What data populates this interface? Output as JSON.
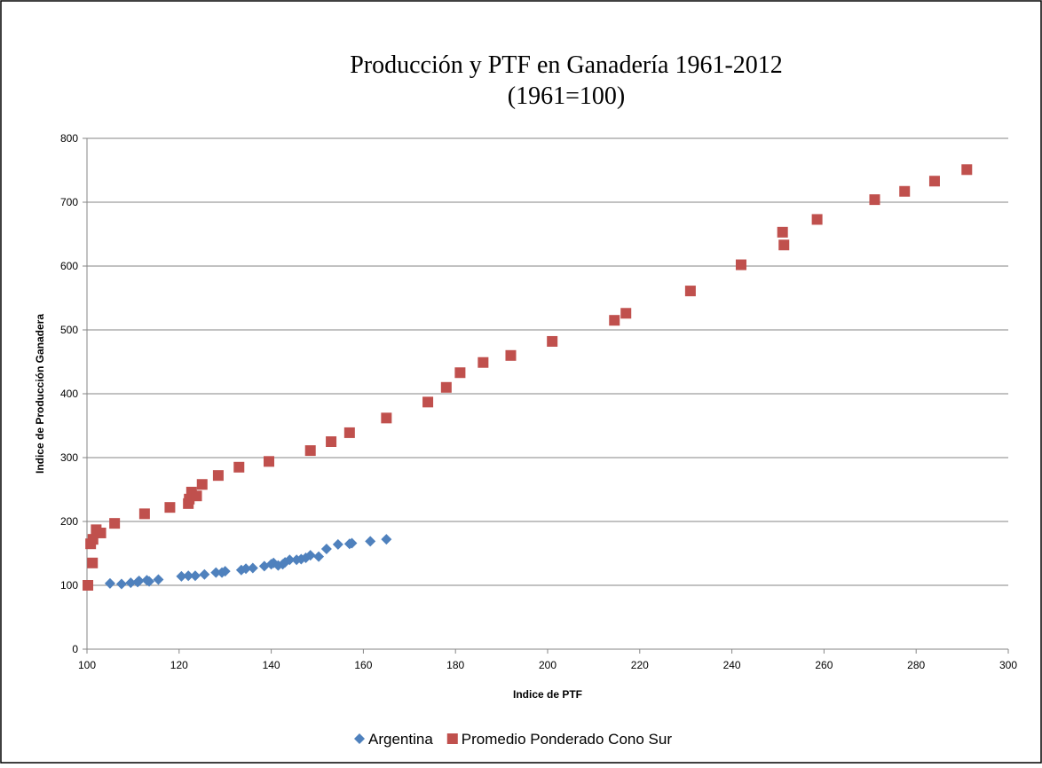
{
  "chart_data": {
    "type": "scatter",
    "title": "Producción y PTF en Ganadería 1961-2012",
    "subtitle": "(1961=100)",
    "x_label": "Indice de PTF",
    "y_label": "Indice de Producción Ganadera",
    "xlim": [
      100,
      300
    ],
    "xticks": [
      100,
      120,
      140,
      160,
      180,
      200,
      220,
      240,
      260,
      280,
      300
    ],
    "ylim": [
      0,
      800
    ],
    "yticks": [
      0,
      100,
      200,
      300,
      400,
      500,
      600,
      700,
      800
    ],
    "grid": true,
    "legend": "bottom",
    "series": [
      {
        "name": "Argentina",
        "color": "#4f81bd",
        "marker": "diamond",
        "x": [
          105,
          107.5,
          109.5,
          111,
          111.3,
          113,
          113.5,
          115.5,
          120.5,
          122,
          123.5,
          125.5,
          128,
          129.3,
          130,
          133.5,
          134.5,
          136,
          138.5,
          140,
          140.5,
          141.5,
          142.5,
          143,
          144,
          145.5,
          146.5,
          147.5,
          148.5,
          150.3,
          152,
          154.5,
          157,
          157.5,
          161.5,
          165
        ],
        "values": [
          103,
          102,
          104,
          105,
          107,
          108,
          106,
          109,
          114,
          115,
          115,
          117,
          120,
          120,
          122,
          124,
          126,
          127,
          130,
          133,
          135,
          131,
          133,
          136,
          140,
          140,
          141,
          143,
          147,
          145,
          157,
          164,
          165,
          166,
          169,
          172
        ]
      },
      {
        "name": "Promedio Ponderado Cono Sur",
        "color": "#c0504d",
        "marker": "square",
        "x": [
          100.2,
          101.2,
          100.8,
          101.3,
          102,
          103,
          106,
          112.5,
          118,
          122,
          122.2,
          122.7,
          123.8,
          125,
          128.5,
          133,
          139.5,
          148.5,
          153,
          157,
          165,
          174,
          178,
          181,
          186,
          192,
          201,
          214.5,
          217,
          231,
          242,
          251,
          251.3,
          258.5,
          271,
          277.5,
          284,
          291
        ],
        "values": [
          100,
          135,
          165,
          172,
          187,
          182,
          197,
          212,
          222,
          228,
          235,
          246,
          240,
          258,
          272,
          285,
          294,
          311,
          325,
          339,
          362,
          387,
          410,
          433,
          449,
          460,
          482,
          515,
          526,
          561,
          602,
          653,
          633,
          673,
          704,
          717,
          733,
          751
        ]
      }
    ]
  }
}
